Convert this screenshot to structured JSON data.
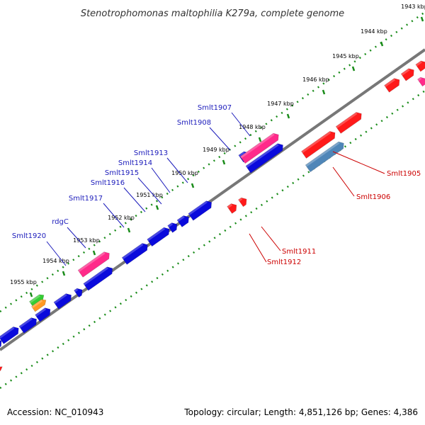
{
  "title": "Stenotrophomonas maltophilia K279a, complete genome",
  "accession_text": "Accession: NC_010943",
  "topology_text": "Topology: circular; Length: 4,851,126 bp; Genes: 4,386",
  "colors": {
    "forward_gene": "#ff1a1a",
    "reverse_gene": "#0a0adc",
    "pink_gene": "#ff2a8a",
    "steel_gene": "#4f86b8",
    "green_gene": "#33cc33",
    "orange_gene": "#ff9922",
    "backbone": "#777777",
    "tick": "#1a8c1a",
    "forward_label": "#cc0000",
    "reverse_label": "#1b1bbb"
  },
  "kbp_ticks": [
    "1943 kbp",
    "1944 kbp",
    "1945 kbp",
    "1946 kbp",
    "1947 kbp",
    "1948 kbp",
    "1949 kbp",
    "1950 kbp",
    "1951 kbp",
    "1952 kbp",
    "1953 kbp",
    "1954 kbp",
    "1955 kbp"
  ],
  "reverse_gene_labels": [
    "Smlt1907",
    "Smlt1908",
    "Smlt1913",
    "Smlt1914",
    "Smlt1915",
    "Smlt1916",
    "Smlt1917",
    "rdgC",
    "Smlt1920"
  ],
  "forward_gene_labels": [
    "Smlt1905",
    "Smlt1906",
    "Smlt1911",
    "Smlt1912"
  ]
}
